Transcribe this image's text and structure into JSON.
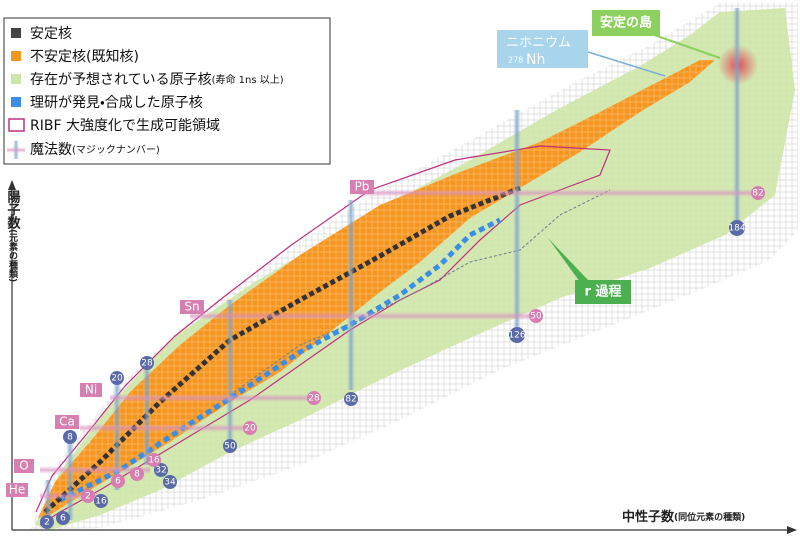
{
  "legend": [
    {
      "label": "安定核"
    },
    {
      "label": "不安定核(既知核)"
    },
    {
      "label": "存在が予想されている原子核",
      "note": "(寿命 1ns 以上)"
    },
    {
      "label": "理研が発見・合成した原子核"
    },
    {
      "label": "RIBF 大強度化で生成可能領域"
    },
    {
      "label": "魔法数",
      "note": "(マジックナンバー)"
    }
  ],
  "axes": {
    "y_label": "陽子数",
    "y_note": "(元素の種類)",
    "x_label": "中性子数",
    "x_note": "(同位元素の種類)"
  },
  "annotations": {
    "nihonium": "ニホニウム",
    "nh_mass": "278",
    "nh_symbol": "Nh",
    "island": "安定の島",
    "r_process": "r 過程"
  },
  "elements": [
    "He",
    "O",
    "Ca",
    "Ni",
    "Sn",
    "Pb"
  ],
  "neutron_magic": [
    "2",
    "6",
    "16",
    "8",
    "20",
    "28",
    "32",
    "34",
    "50",
    "82",
    "126",
    "184"
  ],
  "proton_magic": [
    "2",
    "6",
    "8",
    "16",
    "20",
    "28",
    "50",
    "82"
  ]
}
